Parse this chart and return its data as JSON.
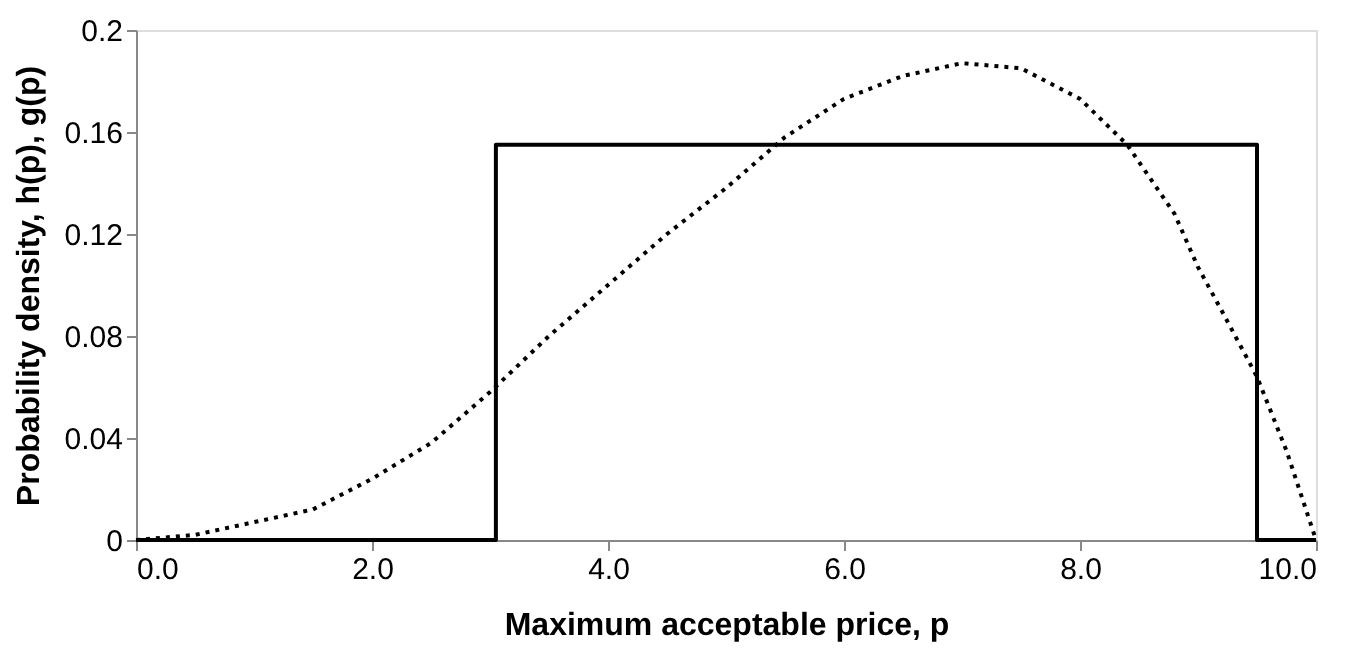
{
  "chart_data": {
    "type": "line",
    "xlabel": "Maximum acceptable price, p",
    "ylabel": "Probability density, h(p), g(p)",
    "xlim": [
      0,
      10
    ],
    "ylim": [
      0,
      0.2
    ],
    "xticks": [
      {
        "value": 0,
        "label": "0.0"
      },
      {
        "value": 2,
        "label": "2.0"
      },
      {
        "value": 4,
        "label": "4.0"
      },
      {
        "value": 6,
        "label": "6.0"
      },
      {
        "value": 8,
        "label": "8.0"
      },
      {
        "value": 10,
        "label": "10.0"
      }
    ],
    "yticks": [
      0,
      0.04,
      0.08,
      0.12,
      0.16,
      0.2
    ],
    "grid": false,
    "series": [
      {
        "color": "#000000",
        "line_style": "solid",
        "x": [
          0,
          3.05,
          3.05,
          9.5,
          9.5,
          10
        ],
        "values": [
          0,
          0,
          0.155,
          0.155,
          0,
          0
        ]
      },
      {
        "color": "#000000",
        "line_style": "dotted",
        "x": [
          0,
          0.5,
          1,
          1.5,
          2,
          2.5,
          3,
          3.5,
          4,
          4.5,
          5,
          5.5,
          6,
          6.5,
          7,
          7.5,
          8,
          8.4,
          8.8,
          9,
          9.2,
          9.5,
          9.75,
          10
        ],
        "values": [
          0,
          0.002,
          0.007,
          0.012,
          0.024,
          0.038,
          0.058,
          0.08,
          0.1,
          0.12,
          0.138,
          0.158,
          0.173,
          0.182,
          0.187,
          0.185,
          0.173,
          0.155,
          0.128,
          0.107,
          0.09,
          0.064,
          0.035,
          0
        ]
      }
    ]
  }
}
